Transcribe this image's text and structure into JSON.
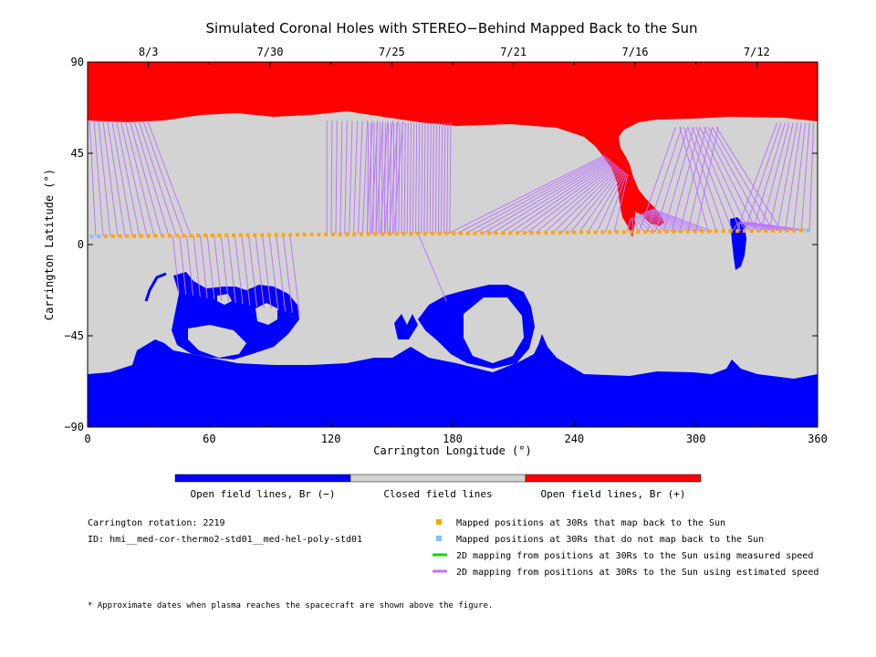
{
  "chart_data": {
    "type": "map",
    "title": "Simulated Coronal Holes with STEREO−Behind Mapped Back to the Sun",
    "xlabel": "Carrington Longitude (°)",
    "ylabel": "Carrington Latitude (°)",
    "xlim": [
      0,
      360
    ],
    "ylim": [
      -90,
      90
    ],
    "x_ticks": [
      "0",
      "60",
      "120",
      "180",
      "240",
      "300",
      "360"
    ],
    "y_ticks": [
      "90",
      "45",
      "0",
      "−45",
      "−90"
    ],
    "top_dates": [
      {
        "lon": 30,
        "label": "8/3"
      },
      {
        "lon": 90,
        "label": "7/30"
      },
      {
        "lon": 150,
        "label": "7/25"
      },
      {
        "lon": 210,
        "label": "7/21"
      },
      {
        "lon": 270,
        "label": "7/16"
      },
      {
        "lon": 330,
        "label": "7/12"
      }
    ],
    "regions": {
      "north_positive_cap_lat": 61,
      "south_negative_cap_lat": -63,
      "positive_tongue_lon": [
        264,
        300
      ],
      "positive_tongue_lat": [
        5,
        60
      ]
    },
    "mapped_track_latitude": [
      4,
      7
    ],
    "colorbar": {
      "labels": [
        "Open field lines, Br (−)",
        "Closed field lines",
        "Open field lines, Br (+)"
      ],
      "colors": [
        "#0000ff",
        "#d3d3d3",
        "#ff0000"
      ]
    },
    "legend": [
      {
        "marker": "square",
        "color": "#ffa500",
        "label": "Mapped positions at 30Rs that map back to the Sun"
      },
      {
        "marker": "square",
        "color": "#7fbfff",
        "label": "Mapped positions at 30Rs that do not map back to the Sun"
      },
      {
        "marker": "line",
        "color": "#00dd00",
        "label": "2D mapping from positions at 30Rs to the Sun using measured speed"
      },
      {
        "marker": "line",
        "color": "#bb77ff",
        "label": "2D mapping from positions at 30Rs to the Sun using estimated speed"
      }
    ],
    "info": [
      "Carrington rotation: 2219",
      "ID: hmi__med-cor-thermo2-std01__med-hel-poly-std01"
    ],
    "footnote": "* Approximate dates when plasma reaches the spacecraft are shown above the figure."
  }
}
